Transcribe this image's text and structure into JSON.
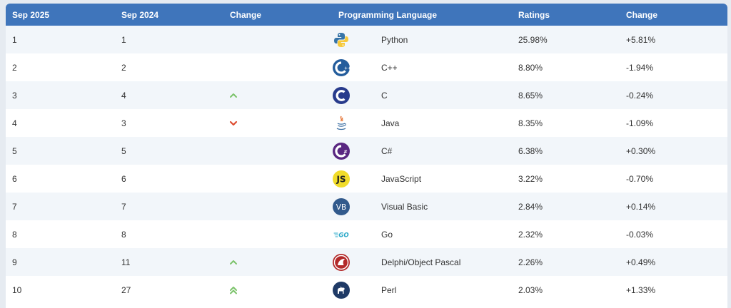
{
  "headers": [
    "Sep 2025",
    "Sep 2024",
    "Change",
    "Programming Language",
    "Ratings",
    "Change"
  ],
  "rows": [
    {
      "cur": "1",
      "prev": "1",
      "trend": "none",
      "icon": "python-icon",
      "lang": "Python",
      "rating": "25.98%",
      "change": "+5.81%"
    },
    {
      "cur": "2",
      "prev": "2",
      "trend": "none",
      "icon": "cplusplus-icon",
      "lang": "C++",
      "rating": "8.80%",
      "change": "-1.94%"
    },
    {
      "cur": "3",
      "prev": "4",
      "trend": "up",
      "icon": "c-icon",
      "lang": "C",
      "rating": "8.65%",
      "change": "-0.24%"
    },
    {
      "cur": "4",
      "prev": "3",
      "trend": "down",
      "icon": "java-icon",
      "lang": "Java",
      "rating": "8.35%",
      "change": "-1.09%"
    },
    {
      "cur": "5",
      "prev": "5",
      "trend": "none",
      "icon": "csharp-icon",
      "lang": "C#",
      "rating": "6.38%",
      "change": "+0.30%"
    },
    {
      "cur": "6",
      "prev": "6",
      "trend": "none",
      "icon": "javascript-icon",
      "lang": "JavaScript",
      "rating": "3.22%",
      "change": "-0.70%"
    },
    {
      "cur": "7",
      "prev": "7",
      "trend": "none",
      "icon": "visual-basic-icon",
      "lang": "Visual Basic",
      "rating": "2.84%",
      "change": "+0.14%"
    },
    {
      "cur": "8",
      "prev": "8",
      "trend": "none",
      "icon": "go-icon",
      "lang": "Go",
      "rating": "2.32%",
      "change": "-0.03%"
    },
    {
      "cur": "9",
      "prev": "11",
      "trend": "up",
      "icon": "delphi-icon",
      "lang": "Delphi/Object Pascal",
      "rating": "2.26%",
      "change": "+0.49%"
    },
    {
      "cur": "10",
      "prev": "27",
      "trend": "up-double",
      "icon": "perl-icon",
      "lang": "Perl",
      "rating": "2.03%",
      "change": "+1.33%"
    }
  ],
  "logos": {
    "js_text": "JS",
    "vb_text": "VB",
    "go_text": "GO"
  },
  "colors": {
    "header_bg": "#3f75bb",
    "row_alt": "#f2f6fa",
    "up": "#7cc36b",
    "down": "#dd4b2f"
  }
}
